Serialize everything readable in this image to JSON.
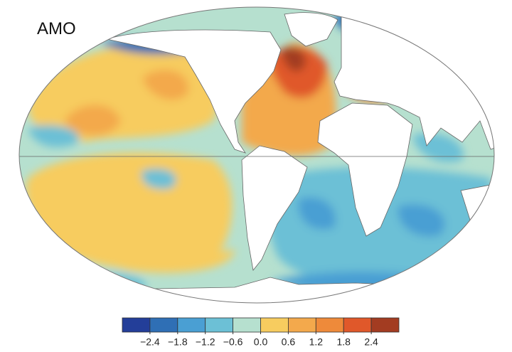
{
  "title": "AMO",
  "colorbar": {
    "lim": [
      -3.0,
      3.0
    ],
    "colors": [
      "#233e99",
      "#2f6fb5",
      "#4a9fd3",
      "#6cc0d6",
      "#b6e0cf",
      "#f7cc5f",
      "#f3a94c",
      "#ee8a3a",
      "#e0582a",
      "#a33c21"
    ],
    "ticks": [
      {
        "value": -2.4,
        "label": "−2.4"
      },
      {
        "value": -1.8,
        "label": "−1.8"
      },
      {
        "value": -1.2,
        "label": "−1.2"
      },
      {
        "value": -0.6,
        "label": "−0.6"
      },
      {
        "value": 0.0,
        "label": "0.0"
      },
      {
        "value": 0.6,
        "label": "0.6"
      },
      {
        "value": 1.2,
        "label": "1.2"
      },
      {
        "value": 1.8,
        "label": "1.8"
      },
      {
        "value": 2.4,
        "label": "2.4"
      }
    ]
  }
}
